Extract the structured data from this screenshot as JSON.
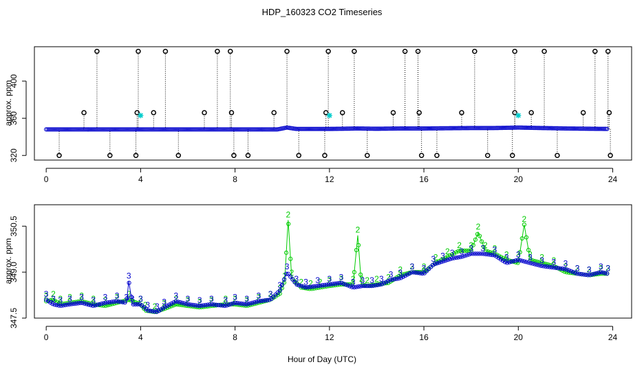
{
  "title": "HDP_160323  CO2 Timeseries",
  "xlabel": "Hour of Day (UTC)",
  "colors": {
    "frame": "#000000",
    "blue": "#0000cc",
    "green": "#00cc00",
    "cyan": "#00cccc",
    "black": "#000000"
  },
  "chart_data": [
    {
      "type": "scatter",
      "title": "",
      "xlabel": "",
      "ylabel": "approx. ppm",
      "xlim": [
        -0.5,
        24.8
      ],
      "ylim": [
        315,
        437
      ],
      "xticks": [
        0,
        4,
        8,
        12,
        16,
        20,
        24
      ],
      "yticks": [
        320,
        360,
        400
      ],
      "baseline": [
        [
          0.0,
          348
        ],
        [
          2,
          348
        ],
        [
          4,
          348
        ],
        [
          6,
          348
        ],
        [
          8,
          348
        ],
        [
          9.8,
          348
        ],
        [
          10.2,
          350
        ],
        [
          10.6,
          348.5
        ],
        [
          12,
          348.5
        ],
        [
          13.2,
          349
        ],
        [
          14,
          348.7
        ],
        [
          15,
          349
        ],
        [
          16,
          349
        ],
        [
          18,
          349.5
        ],
        [
          19,
          349.5
        ],
        [
          20,
          350
        ],
        [
          21,
          349.5
        ],
        [
          22,
          349
        ],
        [
          23.8,
          348.5
        ]
      ],
      "spikes_high": [
        2.15,
        3.9,
        5.05,
        7.25,
        7.8,
        10.2,
        11.95,
        13.05,
        15.2,
        15.75,
        18.15,
        19.85,
        21.1,
        23.25,
        23.8
      ],
      "spikes_mid": [
        1.6,
        3.85,
        4.55,
        6.7,
        7.85,
        9.65,
        11.85,
        12.55,
        14.7,
        15.8,
        17.6,
        19.85,
        20.55,
        22.75,
        23.85
      ],
      "spikes_low": [
        0.55,
        2.7,
        3.8,
        5.6,
        7.95,
        8.55,
        10.7,
        11.8,
        13.6,
        15.9,
        16.55,
        18.7,
        19.75,
        21.65,
        23.9
      ],
      "high_value": 432,
      "mid_value": 366,
      "low_value": 320,
      "cyan_points": [
        {
          "x": 4.0,
          "y": 363
        },
        {
          "x": 12.0,
          "y": 363
        },
        {
          "x": 20.0,
          "y": 363
        }
      ]
    },
    {
      "type": "line",
      "title": "",
      "xlabel": "",
      "ylabel": "approx. ppm",
      "xlim": [
        -0.5,
        24.8
      ],
      "ylim": [
        347.5,
        351.2
      ],
      "xticks": [
        0,
        4,
        8,
        12,
        16,
        20,
        24
      ],
      "yticks": [
        347.5,
        349.0,
        350.5
      ],
      "ytick_labels": [
        "347.5",
        "349.0",
        "350.5"
      ],
      "series": [
        {
          "name": "2",
          "color": "green",
          "marker": "2",
          "points": [
            [
              0.0,
              348.05
            ],
            [
              0.3,
              348.1
            ],
            [
              0.6,
              347.95
            ],
            [
              1.0,
              348.0
            ],
            [
              1.5,
              348.05
            ],
            [
              2.0,
              347.95
            ],
            [
              2.5,
              347.9
            ],
            [
              3.0,
              348.0
            ],
            [
              3.5,
              348.1
            ],
            [
              4.0,
              347.95
            ],
            [
              4.2,
              347.75
            ],
            [
              4.6,
              347.7
            ],
            [
              5.0,
              347.8
            ],
            [
              5.5,
              347.95
            ],
            [
              6.0,
              347.9
            ],
            [
              6.5,
              347.85
            ],
            [
              7.0,
              347.9
            ],
            [
              7.6,
              347.95
            ],
            [
              8.0,
              347.95
            ],
            [
              8.5,
              347.9
            ],
            [
              9.0,
              348.0
            ],
            [
              9.5,
              348.1
            ],
            [
              9.9,
              348.3
            ],
            [
              10.1,
              348.7
            ],
            [
              10.25,
              350.7
            ],
            [
              10.4,
              348.8
            ],
            [
              10.8,
              348.5
            ],
            [
              11.2,
              348.45
            ],
            [
              11.6,
              348.5
            ],
            [
              12.0,
              348.55
            ],
            [
              12.5,
              348.6
            ],
            [
              13.0,
              348.6
            ],
            [
              13.2,
              350.2
            ],
            [
              13.35,
              348.6
            ],
            [
              13.6,
              348.55
            ],
            [
              14.0,
              348.6
            ],
            [
              14.5,
              348.65
            ],
            [
              15.0,
              348.9
            ],
            [
              15.5,
              349.0
            ],
            [
              16.0,
              349.0
            ],
            [
              16.5,
              349.3
            ],
            [
              17.0,
              349.5
            ],
            [
              17.5,
              349.7
            ],
            [
              18.0,
              349.7
            ],
            [
              18.3,
              350.3
            ],
            [
              18.6,
              349.7
            ],
            [
              19.0,
              349.6
            ],
            [
              19.5,
              349.4
            ],
            [
              20.0,
              349.3
            ],
            [
              20.25,
              350.55
            ],
            [
              20.5,
              349.4
            ],
            [
              21.0,
              349.3
            ],
            [
              21.5,
              349.2
            ],
            [
              22.0,
              349.0
            ],
            [
              22.5,
              348.95
            ],
            [
              23.0,
              348.9
            ],
            [
              23.5,
              348.95
            ],
            [
              23.8,
              348.95
            ]
          ]
        },
        {
          "name": "3",
          "color": "blue",
          "marker": "3",
          "points": [
            [
              0.0,
              348.1
            ],
            [
              0.3,
              347.95
            ],
            [
              0.6,
              347.9
            ],
            [
              1.0,
              347.95
            ],
            [
              1.5,
              348.0
            ],
            [
              2.0,
              347.9
            ],
            [
              2.5,
              348.0
            ],
            [
              3.0,
              348.05
            ],
            [
              3.4,
              348.0
            ],
            [
              3.5,
              348.7
            ],
            [
              3.65,
              347.95
            ],
            [
              4.0,
              347.95
            ],
            [
              4.3,
              347.75
            ],
            [
              4.7,
              347.7
            ],
            [
              5.0,
              347.85
            ],
            [
              5.5,
              348.05
            ],
            [
              6.0,
              347.95
            ],
            [
              6.5,
              347.9
            ],
            [
              7.0,
              347.95
            ],
            [
              7.6,
              347.9
            ],
            [
              8.0,
              348.0
            ],
            [
              8.5,
              347.95
            ],
            [
              9.0,
              348.05
            ],
            [
              9.5,
              348.1
            ],
            [
              9.9,
              348.4
            ],
            [
              10.2,
              349.0
            ],
            [
              10.6,
              348.6
            ],
            [
              11.0,
              348.5
            ],
            [
              11.5,
              348.55
            ],
            [
              12.0,
              348.6
            ],
            [
              12.5,
              348.65
            ],
            [
              13.0,
              348.5
            ],
            [
              13.4,
              348.55
            ],
            [
              13.8,
              348.55
            ],
            [
              14.2,
              348.6
            ],
            [
              14.6,
              348.75
            ],
            [
              15.0,
              348.8
            ],
            [
              15.5,
              349.0
            ],
            [
              16.0,
              348.95
            ],
            [
              16.4,
              349.25
            ],
            [
              16.8,
              349.35
            ],
            [
              17.2,
              349.45
            ],
            [
              17.6,
              349.5
            ],
            [
              18.0,
              349.6
            ],
            [
              18.5,
              349.6
            ],
            [
              19.0,
              349.55
            ],
            [
              19.5,
              349.3
            ],
            [
              20.0,
              349.4
            ],
            [
              20.5,
              349.3
            ],
            [
              21.0,
              349.2
            ],
            [
              21.5,
              349.15
            ],
            [
              22.0,
              349.1
            ],
            [
              22.5,
              348.95
            ],
            [
              23.0,
              348.9
            ],
            [
              23.5,
              349.0
            ],
            [
              23.8,
              348.95
            ]
          ]
        }
      ]
    }
  ]
}
